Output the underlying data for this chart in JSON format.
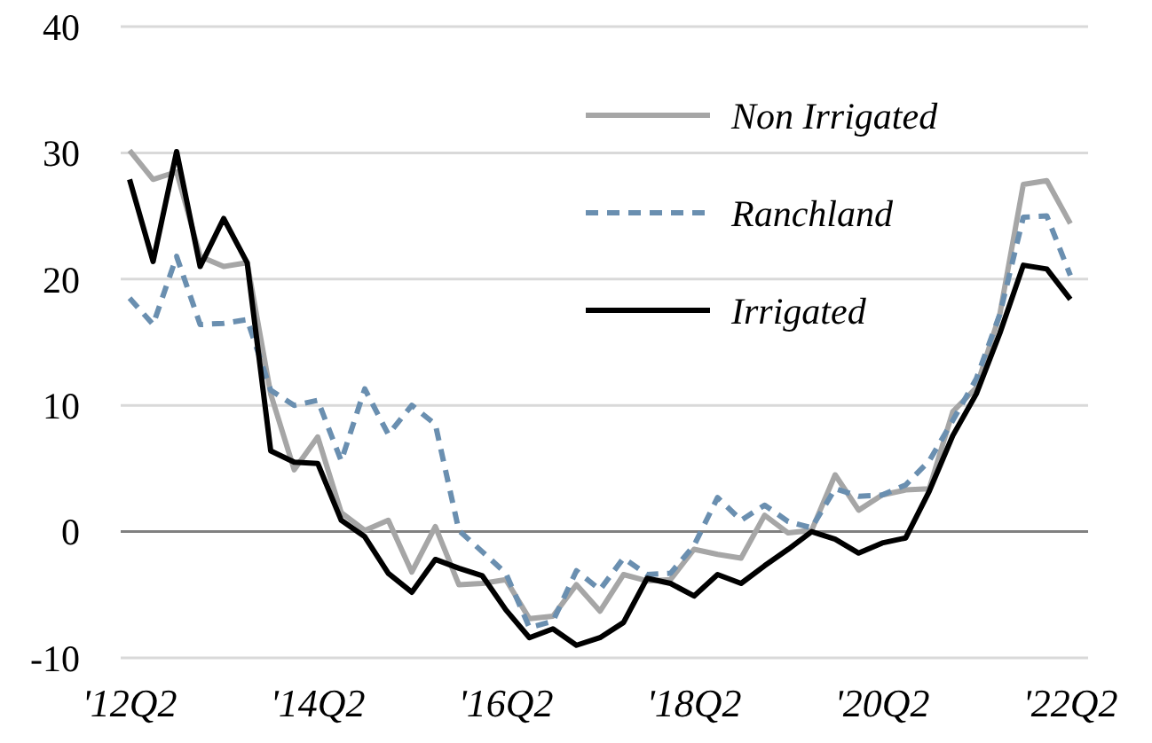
{
  "chart_data": {
    "type": "line",
    "categories": [
      "'12Q2",
      null,
      null,
      null,
      null,
      null,
      null,
      null,
      "'14Q2",
      null,
      null,
      null,
      null,
      null,
      null,
      null,
      "'16Q2",
      null,
      null,
      null,
      null,
      null,
      null,
      null,
      "'18Q2",
      null,
      null,
      null,
      null,
      null,
      null,
      null,
      "'20Q2",
      null,
      null,
      null,
      null,
      null,
      null,
      null,
      "'22Q2"
    ],
    "series": [
      {
        "name": "Non Irrigated",
        "color": "#a6a6a6",
        "line_style": "solid",
        "values": [
          30.2,
          27.9,
          28.5,
          21.8,
          21.0,
          21.3,
          10.9,
          4.9,
          7.5,
          1.5,
          0.1,
          0.9,
          -3.2,
          0.4,
          -4.2,
          -4.1,
          -3.8,
          -6.9,
          -6.7,
          -4.2,
          -6.3,
          -3.4,
          -3.9,
          -3.8,
          -1.4,
          -1.8,
          -2.1,
          1.3,
          -0.1,
          0.1,
          4.5,
          1.7,
          2.9,
          3.3,
          3.4,
          9.5,
          11.4,
          17.2,
          27.5,
          27.8,
          24.4
        ]
      },
      {
        "name": "Ranchland",
        "color": "#6a8fb0",
        "line_style": "dashed",
        "values": [
          18.5,
          16.4,
          21.8,
          16.4,
          16.5,
          16.8,
          11.2,
          10.0,
          10.4,
          5.6,
          11.3,
          7.7,
          10.0,
          8.5,
          0.1,
          -1.6,
          -3.3,
          -7.6,
          -7.1,
          -3.1,
          -4.6,
          -2.1,
          -3.4,
          -3.3,
          -1.1,
          2.7,
          0.9,
          2.1,
          0.8,
          0.3,
          3.4,
          2.8,
          2.9,
          3.7,
          5.6,
          8.8,
          12.1,
          17.2,
          24.9,
          25.0,
          20.3
        ]
      },
      {
        "name": "Irrigated",
        "color": "#000000",
        "line_style": "solid",
        "values": [
          27.9,
          21.4,
          30.1,
          21.0,
          24.8,
          21.3,
          6.4,
          5.5,
          5.4,
          0.9,
          -0.4,
          -3.3,
          -4.8,
          -2.2,
          -2.9,
          -3.5,
          -6.2,
          -8.4,
          -7.7,
          -9.0,
          -8.4,
          -7.2,
          -3.7,
          -4.1,
          -5.1,
          -3.4,
          -4.1,
          -2.7,
          -1.4,
          0.0,
          -0.6,
          -1.7,
          -0.9,
          -0.5,
          3.2,
          7.6,
          10.9,
          15.7,
          21.1,
          20.8,
          18.4
        ]
      }
    ],
    "ylim": [
      -10,
      40
    ],
    "yticks": [
      -10,
      0,
      10,
      20,
      30,
      40
    ],
    "grid": "y",
    "legend": "top right"
  }
}
